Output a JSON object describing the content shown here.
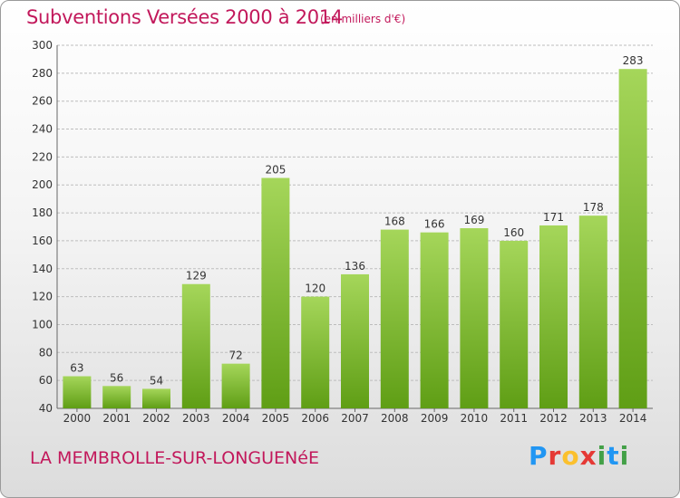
{
  "title": "Subventions Versées 2000 à 2014",
  "subtitle": "(en milliers d'€)",
  "commune": "LA MEMBROLLE-SUR-LONGUENéE",
  "logo": {
    "letters": [
      "P",
      "r",
      "o",
      "x",
      "i",
      "t",
      "i"
    ],
    "colors": [
      "#2196f3",
      "#e53935",
      "#fbc02d",
      "#e53935",
      "#43a047",
      "#2196f3",
      "#43a047"
    ]
  },
  "colors": {
    "accent": "#c2185b",
    "bar_top": "#a5d65a",
    "bar_bottom": "#5f9e15",
    "grid": "#bdbdbd"
  },
  "chart_data": {
    "type": "bar",
    "categories": [
      "2000",
      "2001",
      "2002",
      "2003",
      "2004",
      "2005",
      "2006",
      "2007",
      "2008",
      "2009",
      "2010",
      "2011",
      "2012",
      "2013",
      "2014"
    ],
    "values": [
      63,
      56,
      54,
      129,
      72,
      205,
      120,
      136,
      168,
      166,
      169,
      160,
      171,
      178,
      283
    ],
    "ylim": [
      40,
      300
    ],
    "yticks": [
      40,
      60,
      80,
      100,
      120,
      140,
      160,
      180,
      200,
      220,
      240,
      260,
      280,
      300
    ],
    "grid": true,
    "legend": "none"
  }
}
